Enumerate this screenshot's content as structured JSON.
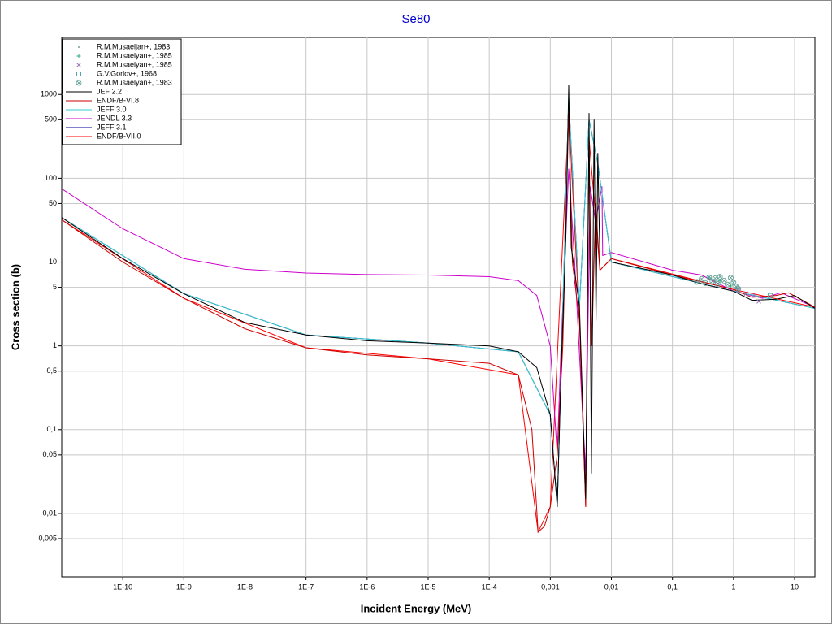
{
  "chart_data": {
    "type": "line",
    "title": "Se80",
    "xlabel": "Incident Energy (MeV)",
    "ylabel": "Cross section (b)",
    "xscale": "log",
    "yscale": "log",
    "grid": true,
    "legend": "upper left",
    "xlim": [
      1e-11,
      21.5
    ],
    "ylim": [
      0.00175,
      4800
    ],
    "xticks": [
      {
        "value": 1e-10,
        "label": "1E-10"
      },
      {
        "value": 1e-09,
        "label": "1E-9"
      },
      {
        "value": 1e-08,
        "label": "1E-8"
      },
      {
        "value": 1e-07,
        "label": "1E-7"
      },
      {
        "value": 1e-06,
        "label": "1E-6"
      },
      {
        "value": 1e-05,
        "label": "1E-5"
      },
      {
        "value": 0.0001,
        "label": "1E-4"
      },
      {
        "value": 0.001,
        "label": "0,001"
      },
      {
        "value": 0.01,
        "label": "0,01"
      },
      {
        "value": 0.1,
        "label": "0,1"
      },
      1,
      10
    ],
    "yticks": [
      {
        "value": 0.005,
        "label": "0,005"
      },
      {
        "value": 0.01,
        "label": "0,01"
      },
      {
        "value": 0.05,
        "label": "0,05"
      },
      {
        "value": 0.1,
        "label": "0,1"
      },
      {
        "value": 0.5,
        "label": "0,5"
      },
      1,
      5,
      10,
      50,
      100,
      500,
      1000
    ],
    "series": [
      {
        "name": "R.M.Musaeljan+, 1983",
        "color": "#7a9a9a",
        "marker": "dot",
        "x": [
          0.3,
          0.5
        ],
        "values": [
          6.2,
          5.8
        ]
      },
      {
        "name": "R.M.Musaelyan+, 1985",
        "color": "#3aa88a",
        "marker": "plus",
        "x": [
          0.4,
          0.6,
          0.9
        ],
        "values": [
          6.5,
          6,
          5.2
        ]
      },
      {
        "name": "R.M.Musaelyan+, 1985",
        "color": "#9a7ab8",
        "marker": "cross",
        "x": [
          1.2,
          1.6,
          2.2,
          2.6
        ],
        "values": [
          4.6,
          4.2,
          4.0,
          3.4
        ]
      },
      {
        "name": "G.V.Gorlov+, 1968",
        "color": "#4aa8a0",
        "marker": "square",
        "x": [
          4
        ],
        "values": [
          4
        ]
      },
      {
        "name": "R.M.Musaelyan+, 1983",
        "color": "#5a9a90",
        "marker": "circlex",
        "x": [
          0.25,
          0.3,
          0.35,
          0.4,
          0.45,
          0.5,
          0.55,
          0.6,
          0.7,
          0.8,
          0.9,
          1.0,
          1.1,
          1.2
        ],
        "values": [
          5.8,
          6.3,
          5.6,
          6.6,
          5.9,
          6.4,
          5.5,
          6.7,
          6.0,
          5.4,
          6.5,
          5.7,
          5.1,
          4.8
        ]
      },
      {
        "name": "JEF 2.2",
        "color": "#000000",
        "x": [
          1e-11,
          1e-10,
          1e-09,
          1e-08,
          1e-07,
          1e-06,
          1e-05,
          0.0001,
          0.0003,
          0.0006,
          0.001,
          0.0013,
          0.0015,
          0.0018,
          0.002,
          0.0022,
          0.003,
          0.0038,
          0.0043,
          0.0047,
          0.0052,
          0.0056,
          0.006,
          0.0065,
          0.01,
          0.1,
          0.3,
          1,
          2,
          5,
          10,
          21.5
        ],
        "values": [
          34,
          11,
          4.2,
          1.9,
          1.35,
          1.15,
          1.08,
          1.0,
          0.85,
          0.55,
          0.15,
          0.012,
          0.5,
          20,
          1300,
          15,
          3,
          0.015,
          600,
          0.03,
          500,
          2,
          200,
          10,
          10,
          7,
          5.5,
          4.5,
          3.5,
          3.6,
          4,
          2.8
        ]
      },
      {
        "name": "ENDF/B-VI.8",
        "color": "#cc0000",
        "x": [
          1e-11,
          1e-10,
          1e-09,
          1e-08,
          1e-07,
          1e-06,
          1e-05,
          0.0001,
          0.0003,
          0.0005,
          0.00063,
          0.0008,
          0.001,
          0.0013,
          0.0016,
          0.002,
          0.0023,
          0.003,
          0.0038,
          0.0043,
          0.0048,
          0.0055,
          0.0065,
          0.01,
          0.1,
          1,
          2,
          5,
          8,
          21.5
        ],
        "values": [
          32,
          10,
          3.7,
          1.6,
          0.95,
          0.78,
          0.7,
          0.62,
          0.45,
          0.1,
          0.006,
          0.007,
          0.012,
          0.05,
          1,
          600,
          10,
          2,
          0.012,
          300,
          1,
          50,
          8,
          11,
          7,
          4.7,
          3.8,
          4,
          4.3,
          2.9
        ]
      },
      {
        "name": "JEFF 3.0",
        "color": "#33cccc",
        "x": [
          1e-11,
          1e-09,
          1e-07,
          1e-05,
          0.0003,
          0.001,
          0.0013,
          0.002,
          0.003,
          0.0043,
          0.006,
          0.01,
          1,
          21.5
        ],
        "values": [
          34,
          4.2,
          1.35,
          1.08,
          0.85,
          0.15,
          0.012,
          900,
          3,
          500,
          150,
          10,
          4.5,
          2.8
        ]
      },
      {
        "name": "JENDL 3.3",
        "color": "#cc00cc",
        "x": [
          1e-11,
          1e-10,
          1e-09,
          1e-08,
          1e-07,
          1e-06,
          1e-05,
          0.0001,
          0.0003,
          0.0006,
          0.001,
          0.0013,
          0.0015,
          0.002,
          0.0025,
          0.0038,
          0.0045,
          0.0055,
          0.007,
          0.0072,
          0.01,
          0.1,
          0.3,
          1,
          3,
          6,
          21.5
        ],
        "values": [
          75,
          25,
          11,
          8.2,
          7.4,
          7.1,
          7,
          6.7,
          6,
          4,
          1,
          0.05,
          1,
          130,
          10,
          0.03,
          80,
          30,
          80,
          12,
          13,
          8,
          7,
          4.5,
          3.7,
          4.3,
          2.9
        ]
      },
      {
        "name": "JEFF 3.1",
        "color": "#000099",
        "x": [
          1e-11,
          1e-09,
          1e-07,
          1e-05,
          0.0003,
          0.001,
          0.0013,
          0.002,
          0.003,
          0.0043,
          0.006,
          0.01,
          1,
          21.5
        ],
        "values": [
          34,
          4.2,
          1.35,
          1.08,
          0.85,
          0.15,
          0.012,
          900,
          3,
          500,
          150,
          10,
          4.5,
          2.8
        ]
      },
      {
        "name": "ENDF/B-VII.0",
        "color": "#ff0000",
        "x": [
          1e-11,
          1e-09,
          1e-07,
          1e-05,
          0.0003,
          0.00063,
          0.001,
          0.002,
          0.003,
          0.0038,
          0.0043,
          0.0065,
          0.01,
          1,
          21.5
        ],
        "values": [
          32,
          3.7,
          0.95,
          0.7,
          0.45,
          0.006,
          0.012,
          600,
          2,
          0.012,
          300,
          8,
          11,
          4.7,
          2.9
        ]
      }
    ]
  }
}
